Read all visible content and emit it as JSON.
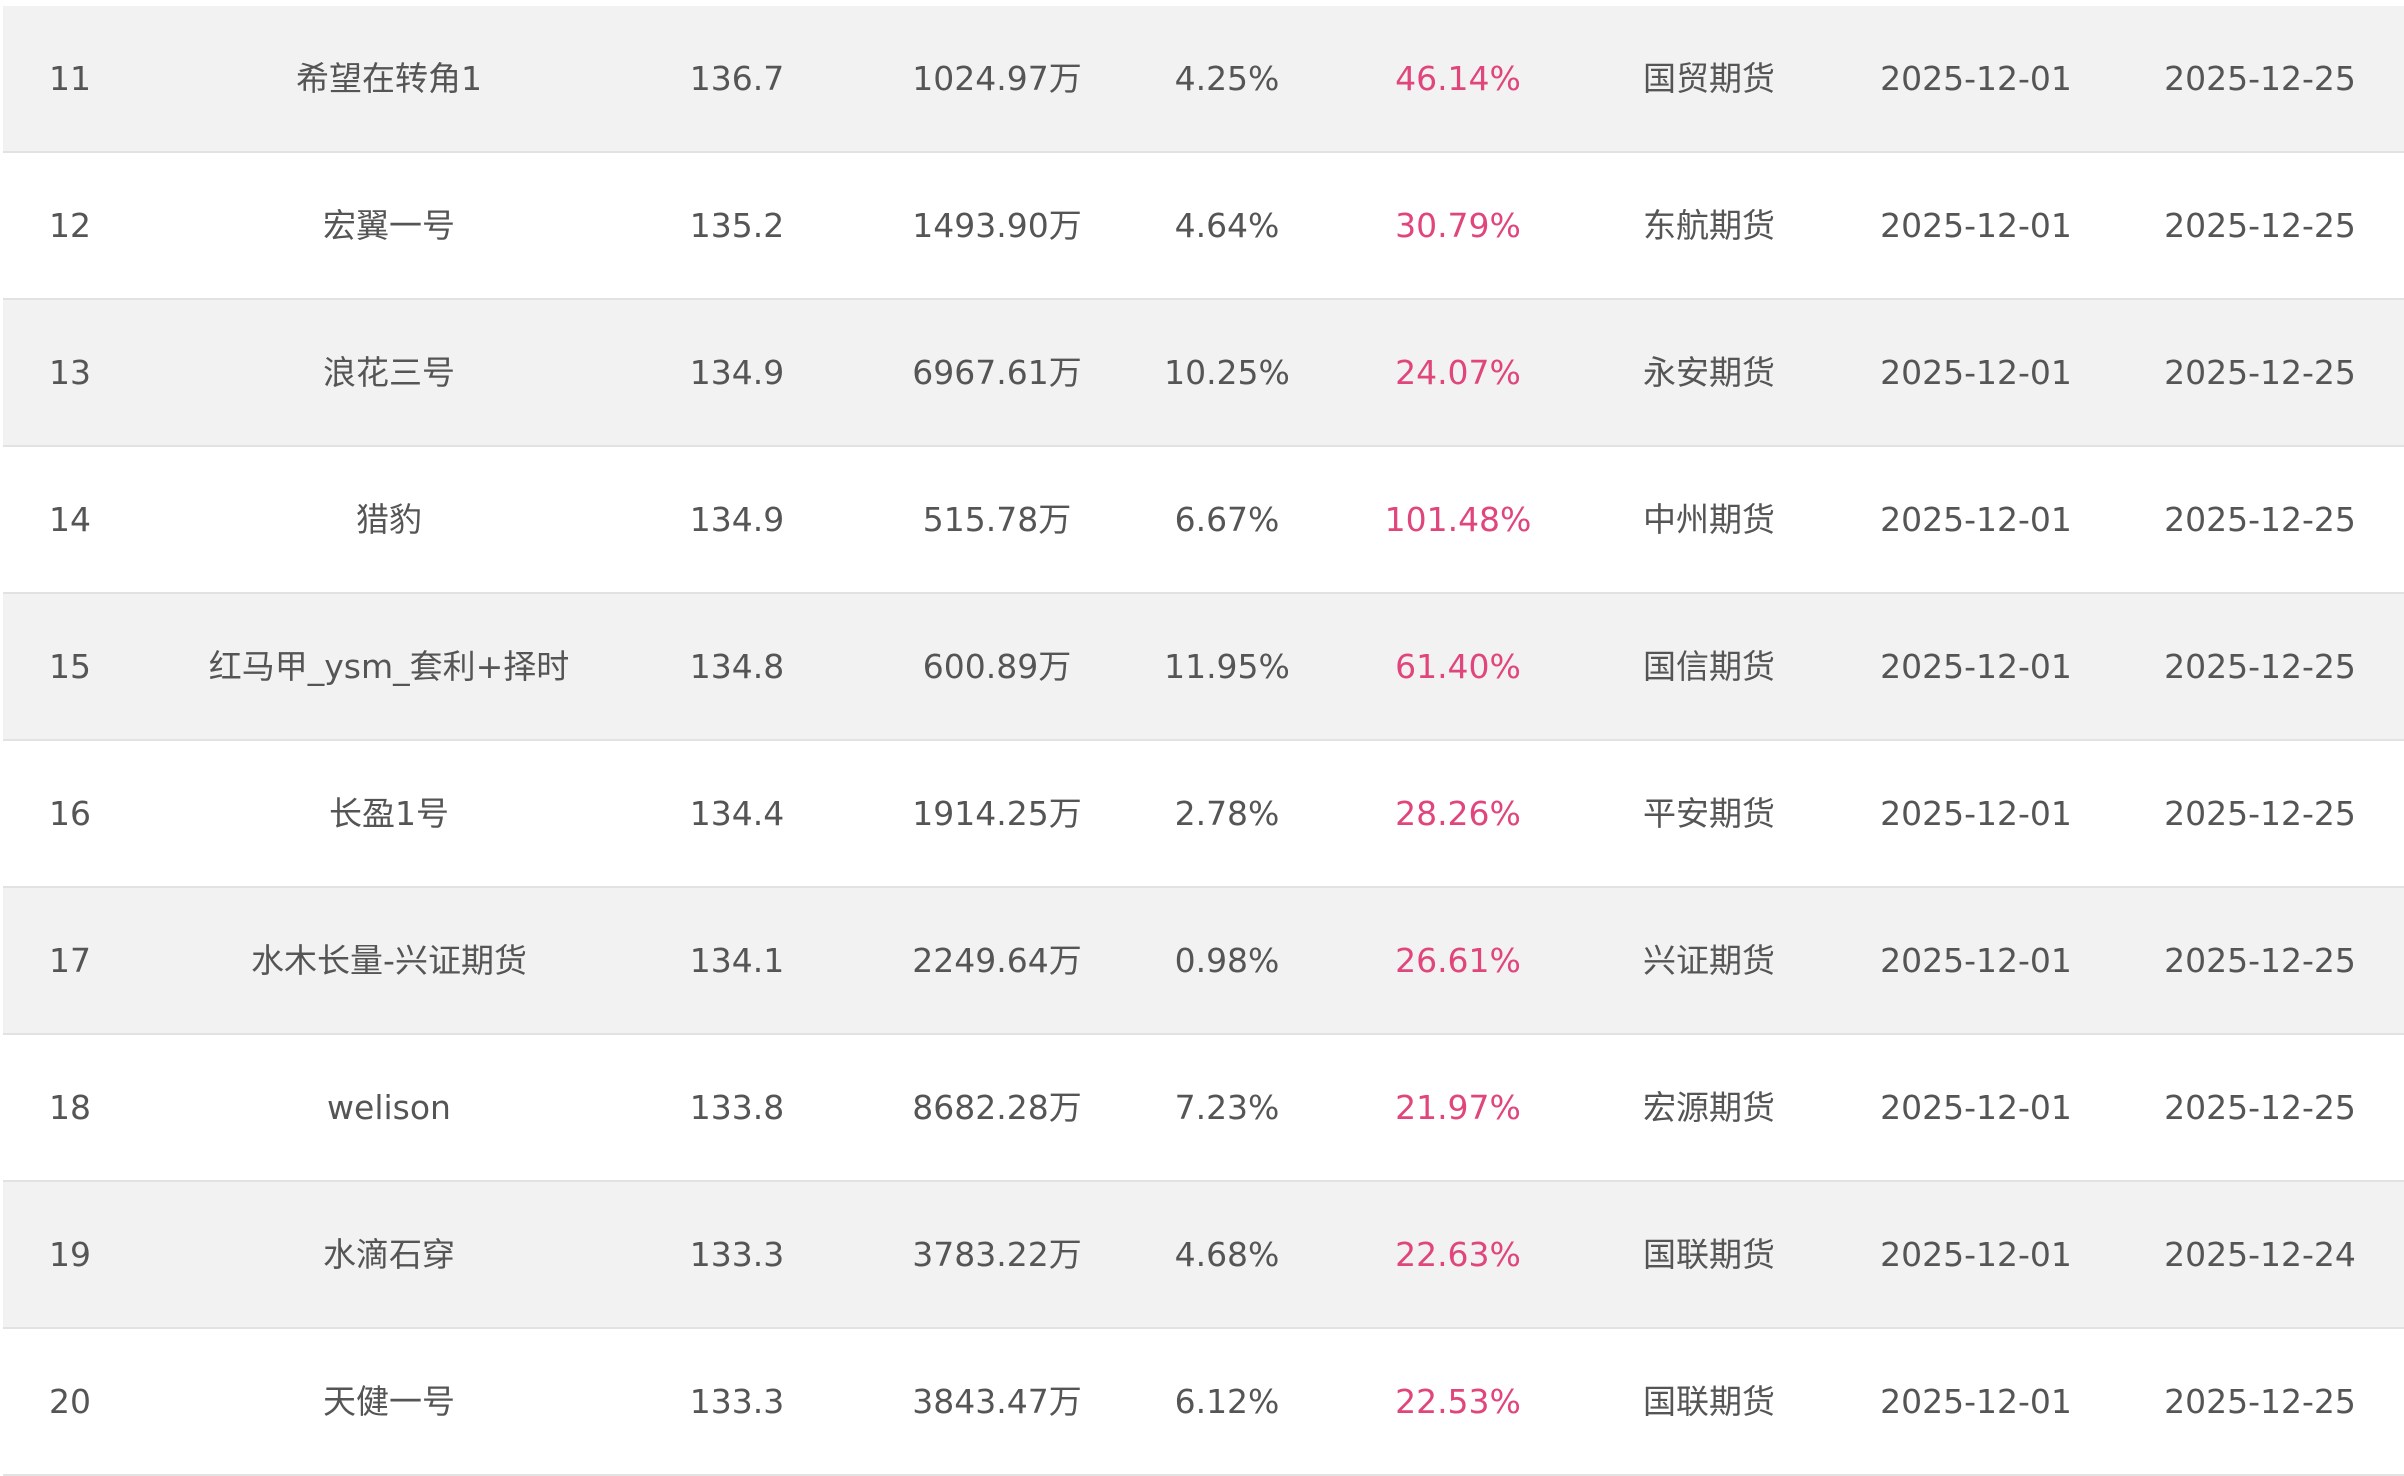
{
  "colors": {
    "row_alt": "#f2f2f2",
    "text": "#555555",
    "return": "#e0457b",
    "border": "#e2e2e2"
  },
  "rows": [
    {
      "rank": "11",
      "name": "希望在转角1",
      "score": "136.7",
      "equity": "1024.97万",
      "drawdown": "4.25%",
      "return": "46.14%",
      "broker": "国贸期货",
      "start": "2025-12-01",
      "end": "2025-12-25"
    },
    {
      "rank": "12",
      "name": "宏翼一号",
      "score": "135.2",
      "equity": "1493.90万",
      "drawdown": "4.64%",
      "return": "30.79%",
      "broker": "东航期货",
      "start": "2025-12-01",
      "end": "2025-12-25"
    },
    {
      "rank": "13",
      "name": "浪花三号",
      "score": "134.9",
      "equity": "6967.61万",
      "drawdown": "10.25%",
      "return": "24.07%",
      "broker": "永安期货",
      "start": "2025-12-01",
      "end": "2025-12-25"
    },
    {
      "rank": "14",
      "name": "猎豹",
      "score": "134.9",
      "equity": "515.78万",
      "drawdown": "6.67%",
      "return": "101.48%",
      "broker": "中州期货",
      "start": "2025-12-01",
      "end": "2025-12-25"
    },
    {
      "rank": "15",
      "name": "红马甲_ysm_套利+择时",
      "score": "134.8",
      "equity": "600.89万",
      "drawdown": "11.95%",
      "return": "61.40%",
      "broker": "国信期货",
      "start": "2025-12-01",
      "end": "2025-12-25"
    },
    {
      "rank": "16",
      "name": "长盈1号",
      "score": "134.4",
      "equity": "1914.25万",
      "drawdown": "2.78%",
      "return": "28.26%",
      "broker": "平安期货",
      "start": "2025-12-01",
      "end": "2025-12-25"
    },
    {
      "rank": "17",
      "name": "水木长量-兴证期货",
      "score": "134.1",
      "equity": "2249.64万",
      "drawdown": "0.98%",
      "return": "26.61%",
      "broker": "兴证期货",
      "start": "2025-12-01",
      "end": "2025-12-25"
    },
    {
      "rank": "18",
      "name": "welison",
      "score": "133.8",
      "equity": "8682.28万",
      "drawdown": "7.23%",
      "return": "21.97%",
      "broker": "宏源期货",
      "start": "2025-12-01",
      "end": "2025-12-25"
    },
    {
      "rank": "19",
      "name": "水滴石穿",
      "score": "133.3",
      "equity": "3783.22万",
      "drawdown": "4.68%",
      "return": "22.63%",
      "broker": "国联期货",
      "start": "2025-12-01",
      "end": "2025-12-24"
    },
    {
      "rank": "20",
      "name": "天健一号",
      "score": "133.3",
      "equity": "3843.47万",
      "drawdown": "6.12%",
      "return": "22.53%",
      "broker": "国联期货",
      "start": "2025-12-01",
      "end": "2025-12-25"
    }
  ]
}
